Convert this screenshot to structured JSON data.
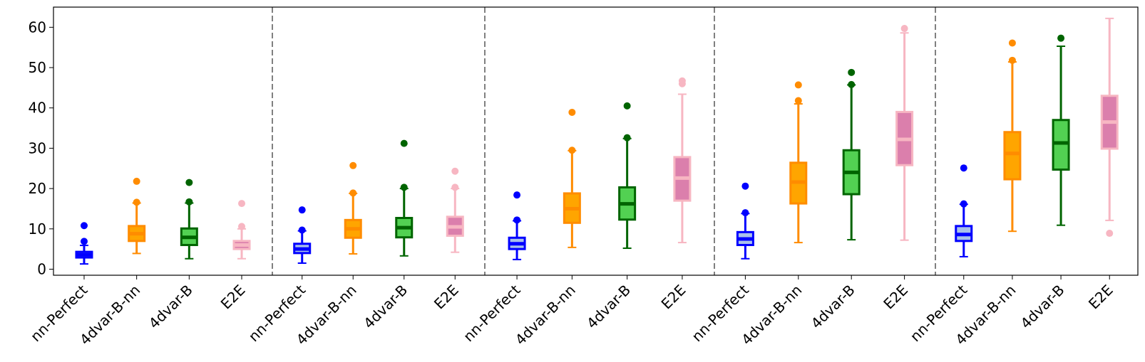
{
  "chart_data": {
    "type": "boxplot",
    "title": "",
    "xlabel": "",
    "ylabel": "",
    "ylim": [
      -1.5,
      65
    ],
    "yticks": [
      0,
      10,
      20,
      30,
      40,
      50,
      60
    ],
    "grid": false,
    "legend": "none",
    "categories": [
      "nn-Perfect",
      "4dvar-B-nn",
      "4dvar-B",
      "E2E"
    ],
    "colors": {
      "nn-Perfect": {
        "edge": "#0000ff",
        "fill": "#a9c1ea",
        "median": "#0000ff"
      },
      "4dvar-B-nn": {
        "edge": "#ff8c00",
        "fill": "#ffa500",
        "median": "#ff8c00"
      },
      "4dvar-B": {
        "edge": "#006400",
        "fill": "#52d152",
        "median": "#006400"
      },
      "E2E": {
        "edge": "#f7b6c2",
        "fill": "#db7fac",
        "median": "#f7b6c2"
      }
    },
    "groups": [
      {
        "boxes": [
          {
            "category": "nn-Perfect",
            "whislo": 1.3,
            "q1": 2.9,
            "med": 3.6,
            "q3": 4.3,
            "whishi": 5.9,
            "fliers": [
              6.9,
              10.8
            ]
          },
          {
            "category": "4dvar-B-nn",
            "whislo": 3.9,
            "q1": 7.0,
            "med": 8.8,
            "q3": 10.7,
            "whishi": 16.4,
            "fliers": [
              16.6,
              21.8
            ]
          },
          {
            "category": "4dvar-B",
            "whislo": 2.6,
            "q1": 6.0,
            "med": 7.9,
            "q3": 10.1,
            "whishi": 16.4,
            "fliers": [
              16.7,
              21.5
            ]
          },
          {
            "category": "E2E",
            "whislo": 2.6,
            "q1": 5.0,
            "med": 6.0,
            "q3": 7.0,
            "whishi": 10.0,
            "fliers": [
              10.6,
              16.3
            ]
          }
        ]
      },
      {
        "boxes": [
          {
            "category": "nn-Perfect",
            "whislo": 1.5,
            "q1": 4.0,
            "med": 5.0,
            "q3": 6.3,
            "whishi": 9.5,
            "fliers": [
              9.7,
              14.7
            ]
          },
          {
            "category": "4dvar-B-nn",
            "whislo": 3.8,
            "q1": 7.8,
            "med": 10.0,
            "q3": 12.2,
            "whishi": 18.8,
            "fliers": [
              18.9,
              25.7
            ]
          },
          {
            "category": "4dvar-B",
            "whislo": 3.3,
            "q1": 7.9,
            "med": 10.3,
            "q3": 12.7,
            "whishi": 20.0,
            "fliers": [
              20.3,
              31.2
            ]
          },
          {
            "category": "E2E",
            "whislo": 4.2,
            "q1": 8.3,
            "med": 10.5,
            "q3": 13.0,
            "whishi": 20.0,
            "fliers": [
              20.3,
              24.3
            ]
          }
        ]
      },
      {
        "boxes": [
          {
            "category": "nn-Perfect",
            "whislo": 2.4,
            "q1": 5.0,
            "med": 6.3,
            "q3": 7.8,
            "whishi": 12.0,
            "fliers": [
              12.2,
              18.4
            ]
          },
          {
            "category": "4dvar-B-nn",
            "whislo": 5.4,
            "q1": 11.5,
            "med": 15.0,
            "q3": 18.8,
            "whishi": 29.4,
            "fliers": [
              29.5,
              38.9
            ]
          },
          {
            "category": "4dvar-B",
            "whislo": 5.2,
            "q1": 12.3,
            "med": 16.2,
            "q3": 20.3,
            "whishi": 32.4,
            "fliers": [
              32.6,
              40.5
            ]
          },
          {
            "category": "E2E",
            "whislo": 6.6,
            "q1": 17.0,
            "med": 22.6,
            "q3": 27.8,
            "whishi": 43.4,
            "fliers": [
              46.0,
              46.7
            ]
          }
        ]
      },
      {
        "boxes": [
          {
            "category": "nn-Perfect",
            "whislo": 2.6,
            "q1": 6.0,
            "med": 7.5,
            "q3": 9.2,
            "whishi": 13.8,
            "fliers": [
              14.0,
              20.6
            ]
          },
          {
            "category": "4dvar-B-nn",
            "whislo": 6.6,
            "q1": 16.3,
            "med": 21.6,
            "q3": 26.4,
            "whishi": 41.0,
            "fliers": [
              41.8,
              45.7
            ]
          },
          {
            "category": "4dvar-B",
            "whislo": 7.3,
            "q1": 18.6,
            "med": 24.0,
            "q3": 29.5,
            "whishi": 45.7,
            "fliers": [
              45.8,
              48.8
            ]
          },
          {
            "category": "E2E",
            "whislo": 7.2,
            "q1": 25.8,
            "med": 32.2,
            "q3": 39.0,
            "whishi": 58.6,
            "fliers": [
              59.7
            ]
          }
        ]
      },
      {
        "boxes": [
          {
            "category": "nn-Perfect",
            "whislo": 3.1,
            "q1": 7.0,
            "med": 8.6,
            "q3": 10.7,
            "whishi": 16.1,
            "fliers": [
              16.2,
              25.1
            ]
          },
          {
            "category": "4dvar-B-nn",
            "whislo": 9.4,
            "q1": 22.3,
            "med": 28.7,
            "q3": 34.0,
            "whishi": 51.4,
            "fliers": [
              51.8,
              56.1
            ]
          },
          {
            "category": "4dvar-B",
            "whislo": 10.9,
            "q1": 24.7,
            "med": 31.3,
            "q3": 37.0,
            "whishi": 55.3,
            "fliers": [
              57.3
            ]
          },
          {
            "category": "E2E",
            "whislo": 12.1,
            "q1": 29.9,
            "med": 36.5,
            "q3": 43.0,
            "whishi": 62.2,
            "fliers": [
              8.9
            ]
          }
        ]
      }
    ]
  }
}
